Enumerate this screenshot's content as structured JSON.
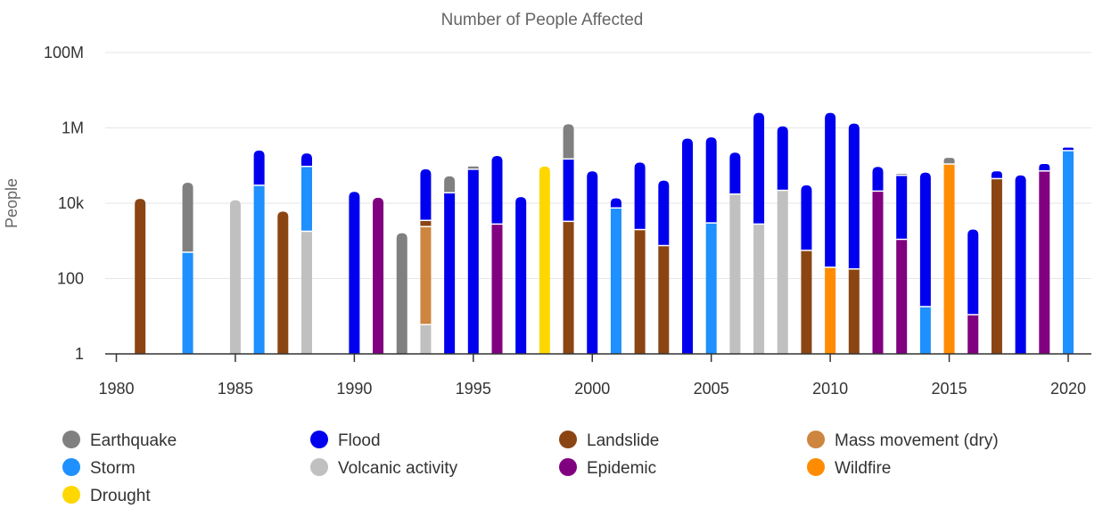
{
  "chart_data": {
    "type": "bar",
    "stacked": true,
    "title": "Number of People Affected",
    "xlabel": "",
    "ylabel": "People",
    "y_scale": "log",
    "ylim": [
      1,
      100000000
    ],
    "xlim": [
      1980,
      2020
    ],
    "grid": true,
    "legend_position": "bottom",
    "y_ticks": [
      {
        "value": 1,
        "label": "1"
      },
      {
        "value": 100,
        "label": "100"
      },
      {
        "value": 10000,
        "label": "10k"
      },
      {
        "value": 1000000,
        "label": "1M"
      },
      {
        "value": 100000000,
        "label": "100M"
      }
    ],
    "x_ticks": [
      {
        "value": 1980,
        "label": "1980"
      },
      {
        "value": 1985,
        "label": "1985"
      },
      {
        "value": 1990,
        "label": "1990"
      },
      {
        "value": 1995,
        "label": "1995"
      },
      {
        "value": 2000,
        "label": "2000"
      },
      {
        "value": 2005,
        "label": "2005"
      },
      {
        "value": 2010,
        "label": "2010"
      },
      {
        "value": 2015,
        "label": "2015"
      },
      {
        "value": 2020,
        "label": "2020"
      }
    ],
    "series_order": [
      "Earthquake",
      "Flood",
      "Landslide",
      "Mass movement (dry)",
      "Storm",
      "Volcanic activity",
      "Epidemic",
      "Wildfire",
      "Drought"
    ],
    "colors": {
      "Earthquake": "#808080",
      "Flood": "#0000ee",
      "Landslide": "#8b4513",
      "Mass movement (dry)": "#cd853f",
      "Storm": "#1e90ff",
      "Volcanic activity": "#c0c0c0",
      "Epidemic": "#800080",
      "Wildfire": "#ff8c00",
      "Drought": "#ffd700"
    },
    "bars": [
      {
        "year": 1981,
        "segments": [
          {
            "type": "Landslide",
            "top": 13000
          }
        ]
      },
      {
        "year": 1983,
        "segments": [
          {
            "type": "Storm",
            "top": 500
          },
          {
            "type": "Earthquake",
            "top": 35000
          }
        ]
      },
      {
        "year": 1985,
        "segments": [
          {
            "type": "Volcanic activity",
            "top": 12000
          }
        ]
      },
      {
        "year": 1986,
        "segments": [
          {
            "type": "Storm",
            "top": 30000
          },
          {
            "type": "Flood",
            "top": 250000
          }
        ]
      },
      {
        "year": 1987,
        "segments": [
          {
            "type": "Landslide",
            "top": 6000
          }
        ]
      },
      {
        "year": 1988,
        "segments": [
          {
            "type": "Volcanic activity",
            "top": 1800
          },
          {
            "type": "Storm",
            "top": 95000
          },
          {
            "type": "Flood",
            "top": 210000
          }
        ]
      },
      {
        "year": 1990,
        "segments": [
          {
            "type": "Flood",
            "top": 20000
          }
        ]
      },
      {
        "year": 1991,
        "segments": [
          {
            "type": "Epidemic",
            "top": 14000
          }
        ]
      },
      {
        "year": 1992,
        "segments": [
          {
            "type": "Earthquake",
            "top": 1600
          }
        ]
      },
      {
        "year": 1993,
        "segments": [
          {
            "type": "Volcanic activity",
            "top": 6
          },
          {
            "type": "Mass movement (dry)",
            "top": 2400
          },
          {
            "type": "Landslide",
            "top": 3500
          },
          {
            "type": "Flood",
            "top": 80000
          }
        ]
      },
      {
        "year": 1994,
        "segments": [
          {
            "type": "Flood",
            "top": 19000
          },
          {
            "type": "Earthquake",
            "top": 52000
          }
        ]
      },
      {
        "year": 1995,
        "segments": [
          {
            "type": "Flood",
            "top": 80000
          },
          {
            "type": "Earthquake",
            "top": 95000
          }
        ]
      },
      {
        "year": 1996,
        "segments": [
          {
            "type": "Epidemic",
            "top": 2800
          },
          {
            "type": "Flood",
            "top": 180000
          }
        ]
      },
      {
        "year": 1997,
        "segments": [
          {
            "type": "Flood",
            "top": 14500
          }
        ]
      },
      {
        "year": 1998,
        "segments": [
          {
            "type": "Drought",
            "top": 95000
          }
        ]
      },
      {
        "year": 1999,
        "segments": [
          {
            "type": "Landslide",
            "top": 3300
          },
          {
            "type": "Flood",
            "top": 150000
          },
          {
            "type": "Earthquake",
            "top": 1250000
          }
        ]
      },
      {
        "year": 2000,
        "segments": [
          {
            "type": "Flood",
            "top": 70000
          }
        ]
      },
      {
        "year": 2001,
        "segments": [
          {
            "type": "Storm",
            "top": 7500
          },
          {
            "type": "Flood",
            "top": 13500
          }
        ]
      },
      {
        "year": 2002,
        "segments": [
          {
            "type": "Landslide",
            "top": 2000
          },
          {
            "type": "Flood",
            "top": 120000
          }
        ]
      },
      {
        "year": 2003,
        "segments": [
          {
            "type": "Landslide",
            "top": 750
          },
          {
            "type": "Flood",
            "top": 40000
          }
        ]
      },
      {
        "year": 2004,
        "segments": [
          {
            "type": "Flood",
            "top": 520000
          }
        ]
      },
      {
        "year": 2005,
        "segments": [
          {
            "type": "Storm",
            "top": 3000
          },
          {
            "type": "Flood",
            "top": 560000
          }
        ]
      },
      {
        "year": 2006,
        "segments": [
          {
            "type": "Volcanic activity",
            "top": 17500
          },
          {
            "type": "Flood",
            "top": 220000
          }
        ]
      },
      {
        "year": 2007,
        "segments": [
          {
            "type": "Volcanic activity",
            "top": 2800
          },
          {
            "type": "Flood",
            "top": 2500000
          }
        ]
      },
      {
        "year": 2008,
        "segments": [
          {
            "type": "Volcanic activity",
            "top": 22000
          },
          {
            "type": "Flood",
            "top": 1100000
          }
        ]
      },
      {
        "year": 2009,
        "segments": [
          {
            "type": "Landslide",
            "top": 560
          },
          {
            "type": "Flood",
            "top": 30000
          }
        ]
      },
      {
        "year": 2010,
        "segments": [
          {
            "type": "Wildfire",
            "top": 200
          },
          {
            "type": "Flood",
            "top": 2500000
          }
        ]
      },
      {
        "year": 2011,
        "segments": [
          {
            "type": "Landslide",
            "top": 180
          },
          {
            "type": "Flood",
            "top": 1300000
          }
        ]
      },
      {
        "year": 2012,
        "segments": [
          {
            "type": "Epidemic",
            "top": 21000
          },
          {
            "type": "Flood",
            "top": 92000
          }
        ]
      },
      {
        "year": 2013,
        "segments": [
          {
            "type": "Epidemic",
            "top": 1100
          },
          {
            "type": "Flood",
            "top": 55000
          },
          {
            "type": "Earthquake",
            "top": 60000
          }
        ]
      },
      {
        "year": 2014,
        "segments": [
          {
            "type": "Storm",
            "top": 18
          },
          {
            "type": "Flood",
            "top": 65000
          }
        ]
      },
      {
        "year": 2015,
        "segments": [
          {
            "type": "Wildfire",
            "top": 110000
          },
          {
            "type": "Earthquake",
            "top": 160000
          }
        ]
      },
      {
        "year": 2016,
        "segments": [
          {
            "type": "Epidemic",
            "top": 11
          },
          {
            "type": "Flood",
            "top": 2000
          }
        ]
      },
      {
        "year": 2017,
        "segments": [
          {
            "type": "Landslide",
            "top": 45000
          },
          {
            "type": "Flood",
            "top": 70000
          }
        ]
      },
      {
        "year": 2018,
        "segments": [
          {
            "type": "Flood",
            "top": 55000
          }
        ]
      },
      {
        "year": 2019,
        "segments": [
          {
            "type": "Epidemic",
            "top": 72000
          },
          {
            "type": "Flood",
            "top": 110000
          }
        ]
      },
      {
        "year": 2020,
        "segments": [
          {
            "type": "Storm",
            "top": 250000
          },
          {
            "type": "Flood",
            "top": 300000
          }
        ]
      }
    ]
  }
}
